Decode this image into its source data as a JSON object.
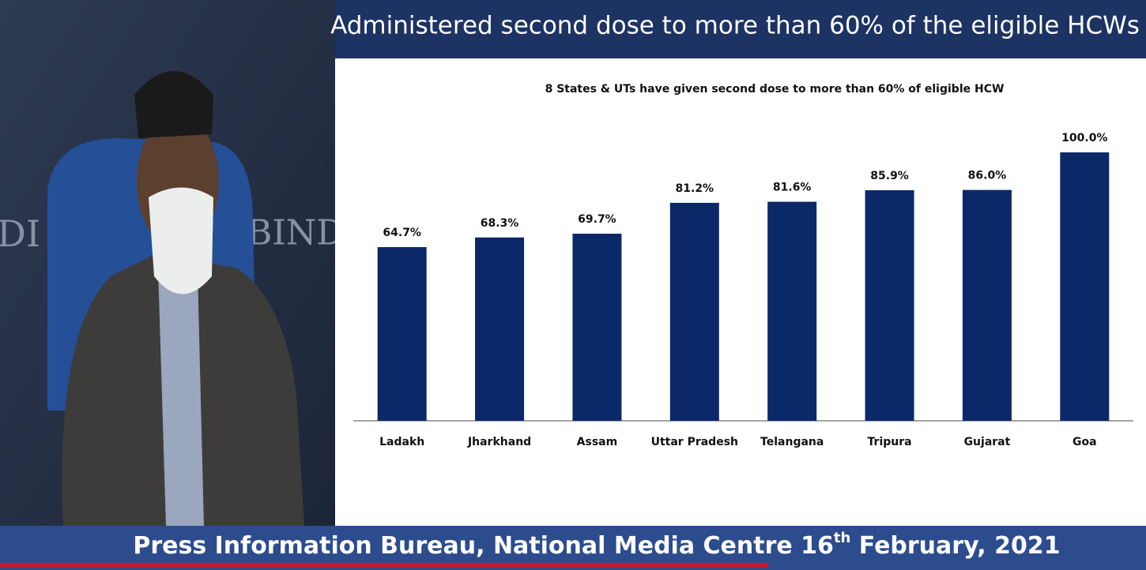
{
  "slide": {
    "title": "Administered second dose to more than 60% of the eligible HCWs"
  },
  "backdrop": {
    "texts": [
      "DI",
      "BINDIA"
    ]
  },
  "chart_data": {
    "type": "bar",
    "title": "8 States & UTs have given second dose to more than 60% of eligible HCW",
    "categories": [
      "Ladakh",
      "Jharkhand",
      "Assam",
      "Uttar Pradesh",
      "Telangana",
      "Tripura",
      "Gujarat",
      "Goa"
    ],
    "values": [
      64.7,
      68.3,
      69.7,
      81.2,
      81.6,
      85.9,
      86.0,
      100.0
    ],
    "value_labels": [
      "64.7%",
      "68.3%",
      "69.7%",
      "81.2%",
      "81.6%",
      "85.9%",
      "86.0%",
      "100.0%"
    ],
    "color": "#0b2869",
    "ylim": [
      0,
      100
    ]
  },
  "footer": {
    "parts": [
      "Press Information Bureau, National Media Centre  16",
      "th",
      " February, 2021"
    ]
  }
}
